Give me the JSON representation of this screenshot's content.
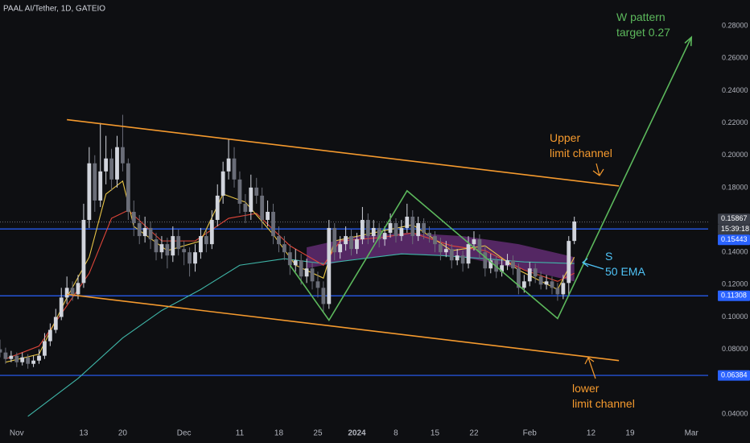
{
  "chart_data": {
    "type": "candlestick",
    "title": "PAAL AI/Tether, 1D, GATEIO",
    "xlim": [
      "2023-10-29",
      "2024-03-04"
    ],
    "ylim": [
      0.032,
      0.296
    ],
    "xticks": [
      {
        "value": "2023-11-01",
        "label": "Nov"
      },
      {
        "value": "2023-11-13",
        "label": "13"
      },
      {
        "value": "2023-11-20",
        "label": "20"
      },
      {
        "value": "2023-12-01",
        "label": "Dec"
      },
      {
        "value": "2023-12-11",
        "label": "11"
      },
      {
        "value": "2023-12-18",
        "label": "18"
      },
      {
        "value": "2023-12-25",
        "label": "25"
      },
      {
        "value": "2024-01-01",
        "label": "2024"
      },
      {
        "value": "2024-01-08",
        "label": "8"
      },
      {
        "value": "2024-01-15",
        "label": "15"
      },
      {
        "value": "2024-01-22",
        "label": "22"
      },
      {
        "value": "2024-02-01",
        "label": "Feb"
      },
      {
        "value": "2024-02-12",
        "label": "12"
      },
      {
        "value": "2024-02-19",
        "label": "19"
      },
      {
        "value": "2024-03-01",
        "label": "Mar"
      }
    ],
    "yticks": [
      {
        "value": 0.28,
        "label": "0.28000"
      },
      {
        "value": 0.26,
        "label": "0.26000"
      },
      {
        "value": 0.24,
        "label": "0.24000"
      },
      {
        "value": 0.22,
        "label": "0.22000"
      },
      {
        "value": 0.2,
        "label": "0.20000"
      },
      {
        "value": 0.18,
        "label": "0.18000"
      },
      {
        "value": 0.14,
        "label": "0.14000"
      },
      {
        "value": 0.12,
        "label": "0.12000"
      },
      {
        "value": 0.1,
        "label": "0.10000"
      },
      {
        "value": 0.08,
        "label": "0.08000"
      },
      {
        "value": 0.04,
        "label": "0.04000"
      }
    ],
    "up_color": "#d1d4dc",
    "down_color": "#6a6d78",
    "candles": [
      [
        "2023-10-29",
        0.08,
        0.086,
        0.075,
        0.078
      ],
      [
        "2023-10-30",
        0.078,
        0.081,
        0.071,
        0.074
      ],
      [
        "2023-10-31",
        0.074,
        0.079,
        0.072,
        0.076
      ],
      [
        "2023-11-01",
        0.076,
        0.078,
        0.069,
        0.072
      ],
      [
        "2023-11-02",
        0.072,
        0.078,
        0.07,
        0.075
      ],
      [
        "2023-11-03",
        0.075,
        0.077,
        0.068,
        0.071
      ],
      [
        "2023-11-04",
        0.071,
        0.076,
        0.069,
        0.073
      ],
      [
        "2023-11-05",
        0.073,
        0.08,
        0.071,
        0.076
      ],
      [
        "2023-11-06",
        0.076,
        0.09,
        0.074,
        0.085
      ],
      [
        "2023-11-07",
        0.085,
        0.096,
        0.082,
        0.092
      ],
      [
        "2023-11-08",
        0.092,
        0.105,
        0.09,
        0.1
      ],
      [
        "2023-11-09",
        0.1,
        0.118,
        0.098,
        0.112
      ],
      [
        "2023-11-10",
        0.112,
        0.125,
        0.108,
        0.118
      ],
      [
        "2023-11-11",
        0.118,
        0.122,
        0.11,
        0.114
      ],
      [
        "2023-11-12",
        0.114,
        0.126,
        0.111,
        0.121
      ],
      [
        "2023-11-13",
        0.121,
        0.17,
        0.118,
        0.16
      ],
      [
        "2023-11-14",
        0.16,
        0.205,
        0.155,
        0.195
      ],
      [
        "2023-11-15",
        0.195,
        0.2,
        0.165,
        0.172
      ],
      [
        "2023-11-16",
        0.172,
        0.22,
        0.168,
        0.19
      ],
      [
        "2023-11-17",
        0.19,
        0.212,
        0.182,
        0.198
      ],
      [
        "2023-11-18",
        0.198,
        0.204,
        0.178,
        0.185
      ],
      [
        "2023-11-19",
        0.185,
        0.212,
        0.18,
        0.205
      ],
      [
        "2023-11-20",
        0.205,
        0.225,
        0.19,
        0.195
      ],
      [
        "2023-11-21",
        0.195,
        0.198,
        0.16,
        0.165
      ],
      [
        "2023-11-22",
        0.165,
        0.172,
        0.15,
        0.158
      ],
      [
        "2023-11-23",
        0.158,
        0.163,
        0.145,
        0.15
      ],
      [
        "2023-11-24",
        0.15,
        0.162,
        0.146,
        0.155
      ],
      [
        "2023-11-25",
        0.155,
        0.159,
        0.142,
        0.148
      ],
      [
        "2023-11-26",
        0.148,
        0.152,
        0.135,
        0.14
      ],
      [
        "2023-11-27",
        0.14,
        0.15,
        0.136,
        0.145
      ],
      [
        "2023-11-28",
        0.145,
        0.149,
        0.13,
        0.138
      ],
      [
        "2023-11-29",
        0.138,
        0.156,
        0.134,
        0.15
      ],
      [
        "2023-11-30",
        0.15,
        0.154,
        0.138,
        0.142
      ],
      [
        "2023-12-01",
        0.142,
        0.147,
        0.132,
        0.14
      ],
      [
        "2023-12-02",
        0.14,
        0.143,
        0.125,
        0.133
      ],
      [
        "2023-12-03",
        0.133,
        0.145,
        0.128,
        0.14
      ],
      [
        "2023-12-04",
        0.14,
        0.155,
        0.136,
        0.15
      ],
      [
        "2023-12-05",
        0.15,
        0.154,
        0.14,
        0.145
      ],
      [
        "2023-12-06",
        0.145,
        0.166,
        0.142,
        0.16
      ],
      [
        "2023-12-07",
        0.16,
        0.182,
        0.156,
        0.175
      ],
      [
        "2023-12-08",
        0.175,
        0.196,
        0.17,
        0.19
      ],
      [
        "2023-12-09",
        0.19,
        0.21,
        0.185,
        0.198
      ],
      [
        "2023-12-10",
        0.198,
        0.205,
        0.18,
        0.185
      ],
      [
        "2023-12-11",
        0.185,
        0.19,
        0.164,
        0.17
      ],
      [
        "2023-12-12",
        0.17,
        0.176,
        0.158,
        0.165
      ],
      [
        "2023-12-13",
        0.165,
        0.188,
        0.16,
        0.18
      ],
      [
        "2023-12-14",
        0.18,
        0.186,
        0.17,
        0.175
      ],
      [
        "2023-12-15",
        0.175,
        0.18,
        0.154,
        0.16
      ],
      [
        "2023-12-16",
        0.16,
        0.172,
        0.156,
        0.165
      ],
      [
        "2023-12-17",
        0.165,
        0.17,
        0.145,
        0.15
      ],
      [
        "2023-12-18",
        0.15,
        0.156,
        0.14,
        0.145
      ],
      [
        "2023-12-19",
        0.145,
        0.15,
        0.135,
        0.14
      ],
      [
        "2023-12-20",
        0.14,
        0.145,
        0.126,
        0.132
      ],
      [
        "2023-12-21",
        0.132,
        0.142,
        0.128,
        0.135
      ],
      [
        "2023-12-22",
        0.135,
        0.139,
        0.12,
        0.125
      ],
      [
        "2023-12-23",
        0.125,
        0.136,
        0.121,
        0.13
      ],
      [
        "2023-12-24",
        0.13,
        0.134,
        0.117,
        0.122
      ],
      [
        "2023-12-25",
        0.122,
        0.128,
        0.112,
        0.118
      ],
      [
        "2023-12-26",
        0.118,
        0.122,
        0.103,
        0.108
      ],
      [
        "2023-12-27",
        0.108,
        0.16,
        0.105,
        0.155
      ],
      [
        "2023-12-28",
        0.155,
        0.158,
        0.135,
        0.14
      ],
      [
        "2023-12-29",
        0.14,
        0.15,
        0.136,
        0.145
      ],
      [
        "2023-12-30",
        0.145,
        0.156,
        0.141,
        0.15
      ],
      [
        "2023-12-31",
        0.15,
        0.154,
        0.138,
        0.142
      ],
      [
        "2024-01-01",
        0.142,
        0.152,
        0.139,
        0.148
      ],
      [
        "2024-01-02",
        0.148,
        0.168,
        0.145,
        0.16
      ],
      [
        "2024-01-03",
        0.16,
        0.164,
        0.145,
        0.15
      ],
      [
        "2024-01-04",
        0.15,
        0.16,
        0.146,
        0.155
      ],
      [
        "2024-01-05",
        0.155,
        0.158,
        0.143,
        0.148
      ],
      [
        "2024-01-06",
        0.148,
        0.156,
        0.144,
        0.152
      ],
      [
        "2024-01-07",
        0.152,
        0.164,
        0.149,
        0.158
      ],
      [
        "2024-01-08",
        0.158,
        0.161,
        0.146,
        0.15
      ],
      [
        "2024-01-09",
        0.15,
        0.16,
        0.147,
        0.155
      ],
      [
        "2024-01-10",
        0.155,
        0.17,
        0.152,
        0.162
      ],
      [
        "2024-01-11",
        0.162,
        0.166,
        0.145,
        0.15
      ],
      [
        "2024-01-12",
        0.15,
        0.162,
        0.147,
        0.158
      ],
      [
        "2024-01-13",
        0.158,
        0.161,
        0.148,
        0.152
      ],
      [
        "2024-01-14",
        0.152,
        0.156,
        0.146,
        0.15
      ],
      [
        "2024-01-15",
        0.15,
        0.153,
        0.14,
        0.145
      ],
      [
        "2024-01-16",
        0.145,
        0.149,
        0.135,
        0.14
      ],
      [
        "2024-01-17",
        0.14,
        0.147,
        0.137,
        0.142
      ],
      [
        "2024-01-18",
        0.142,
        0.145,
        0.13,
        0.135
      ],
      [
        "2024-01-19",
        0.135,
        0.142,
        0.132,
        0.138
      ],
      [
        "2024-01-20",
        0.138,
        0.141,
        0.128,
        0.133
      ],
      [
        "2024-01-21",
        0.133,
        0.15,
        0.13,
        0.145
      ],
      [
        "2024-01-22",
        0.145,
        0.153,
        0.141,
        0.148
      ],
      [
        "2024-01-23",
        0.148,
        0.151,
        0.136,
        0.14
      ],
      [
        "2024-01-24",
        0.14,
        0.144,
        0.125,
        0.13
      ],
      [
        "2024-01-25",
        0.13,
        0.139,
        0.127,
        0.135
      ],
      [
        "2024-01-26",
        0.135,
        0.138,
        0.124,
        0.128
      ],
      [
        "2024-01-27",
        0.128,
        0.136,
        0.125,
        0.132
      ],
      [
        "2024-01-28",
        0.132,
        0.139,
        0.129,
        0.135
      ],
      [
        "2024-01-29",
        0.135,
        0.138,
        0.126,
        0.13
      ],
      [
        "2024-01-30",
        0.13,
        0.133,
        0.114,
        0.118
      ],
      [
        "2024-01-31",
        0.118,
        0.126,
        0.115,
        0.122
      ],
      [
        "2024-02-01",
        0.122,
        0.134,
        0.119,
        0.13
      ],
      [
        "2024-02-02",
        0.13,
        0.133,
        0.121,
        0.125
      ],
      [
        "2024-02-03",
        0.125,
        0.128,
        0.117,
        0.12
      ],
      [
        "2024-02-04",
        0.12,
        0.126,
        0.117,
        0.122
      ],
      [
        "2024-02-05",
        0.122,
        0.125,
        0.114,
        0.118
      ],
      [
        "2024-02-06",
        0.118,
        0.121,
        0.11,
        0.114
      ],
      [
        "2024-02-07",
        0.114,
        0.126,
        0.111,
        0.121
      ],
      [
        "2024-02-08",
        0.121,
        0.15,
        0.113,
        0.147
      ],
      [
        "2024-02-09",
        0.147,
        0.162,
        0.145,
        0.159
      ]
    ],
    "band": {
      "color": "#8e3ca6",
      "x": [
        "2023-12-23",
        "2024-01-01",
        "2024-01-10",
        "2024-01-20",
        "2024-01-30",
        "2024-02-09"
      ],
      "upper": [
        0.143,
        0.15,
        0.152,
        0.15,
        0.145,
        0.137
      ],
      "lower": [
        0.13,
        0.136,
        0.139,
        0.137,
        0.13,
        0.122
      ]
    },
    "series": [
      {
        "color": "#3fb6a8",
        "x": [
          "2023-11-03",
          "2023-11-12",
          "2023-11-20",
          "2023-11-27",
          "2023-12-04",
          "2023-12-11",
          "2023-12-19",
          "2023-12-26",
          "2024-01-02",
          "2024-01-09",
          "2024-01-16",
          "2024-01-24",
          "2024-01-31",
          "2024-02-09"
        ],
        "values": [
          0.0385,
          0.062,
          0.087,
          0.104,
          0.117,
          0.132,
          0.136,
          0.133,
          0.136,
          0.139,
          0.138,
          0.136,
          0.134,
          0.133
        ]
      },
      {
        "color": "#e0463a",
        "x": [
          "2023-10-30",
          "2023-11-05",
          "2023-11-10",
          "2023-11-14",
          "2023-11-18",
          "2023-11-21",
          "2023-11-27",
          "2023-12-03",
          "2023-12-09",
          "2023-12-14",
          "2023-12-20",
          "2023-12-26",
          "2023-12-29",
          "2024-01-05",
          "2024-01-11",
          "2024-01-18",
          "2024-01-24",
          "2024-01-31",
          "2024-02-06",
          "2024-02-09"
        ],
        "values": [
          0.074,
          0.082,
          0.107,
          0.127,
          0.161,
          0.166,
          0.147,
          0.147,
          0.161,
          0.164,
          0.144,
          0.132,
          0.147,
          0.149,
          0.152,
          0.144,
          0.141,
          0.129,
          0.122,
          0.127
        ]
      },
      {
        "color": "#e8c547",
        "x": [
          "2023-10-30",
          "2023-11-05",
          "2023-11-10",
          "2023-11-14",
          "2023-11-17",
          "2023-11-20",
          "2023-11-22",
          "2023-11-28",
          "2023-12-04",
          "2023-12-08",
          "2023-12-12",
          "2023-12-17",
          "2023-12-21",
          "2023-12-26",
          "2023-12-28",
          "2024-01-04",
          "2024-01-11",
          "2024-01-18",
          "2024-01-24",
          "2024-01-30",
          "2024-02-06",
          "2024-02-09"
        ],
        "values": [
          0.072,
          0.077,
          0.112,
          0.137,
          0.176,
          0.184,
          0.156,
          0.141,
          0.147,
          0.176,
          0.171,
          0.151,
          0.132,
          0.124,
          0.147,
          0.152,
          0.157,
          0.141,
          0.144,
          0.129,
          0.117,
          0.137
        ]
      }
    ],
    "drawings": [
      {
        "color": "#f59a2e",
        "x": [
          "2023-11-10",
          "2024-02-17"
        ],
        "values": [
          0.222,
          0.181
        ]
      },
      {
        "color": "#f59a2e",
        "x": [
          "2023-11-10",
          "2024-02-17"
        ],
        "values": [
          0.114,
          0.073
        ]
      },
      {
        "color": "#5cb85c",
        "x": [
          "2023-12-20",
          "2023-12-27",
          "2024-01-10",
          "2024-02-06",
          "2024-03-01"
        ],
        "values": [
          0.132,
          0.098,
          0.178,
          0.099,
          0.273
        ]
      }
    ],
    "price_lines": [
      0.15443,
      0.11308,
      0.06384
    ],
    "last_price": 0.15867,
    "countdown": "15:39:18",
    "annotations": [
      {
        "color": "#5cb85c",
        "lines": [
          "W pattern",
          "target 0.27"
        ]
      },
      {
        "color": "#f59a2e",
        "lines": [
          "Upper",
          "limit channel"
        ]
      },
      {
        "color": "#4fc3f7",
        "lines": [
          "S",
          "50 EMA"
        ]
      },
      {
        "color": "#f59a2e",
        "lines": [
          "lower",
          "limit channel"
        ]
      }
    ]
  }
}
